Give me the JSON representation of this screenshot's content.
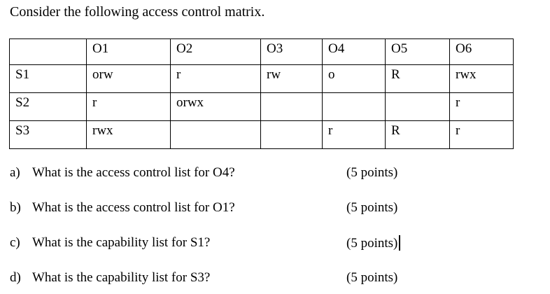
{
  "title": "Consider the following access control matrix.",
  "matrix": {
    "columns": [
      "",
      "O1",
      "O2",
      "O3",
      "O4",
      "O5",
      "O6"
    ],
    "rows": [
      {
        "label": "S1",
        "cells": [
          "orw",
          "r",
          "rw",
          "o",
          "R",
          "rwx"
        ]
      },
      {
        "label": "S2",
        "cells": [
          "r",
          "orwx",
          "",
          "",
          "",
          "r"
        ]
      },
      {
        "label": "S3",
        "cells": [
          "rwx",
          "",
          "",
          "r",
          "R",
          "r"
        ]
      }
    ]
  },
  "questions": [
    {
      "label": "a)",
      "text": "What is the access control list for O4?",
      "points": "(5 points)",
      "cursor": false
    },
    {
      "label": "b)",
      "text": "What is the access control list for O1?",
      "points": "(5 points)",
      "cursor": false
    },
    {
      "label": "c)",
      "text": "What is the capability list for S1?",
      "points": "(5 points)",
      "cursor": true
    },
    {
      "label": "d)",
      "text": "What is the capability list for S3?",
      "points": "(5 points)",
      "cursor": false
    }
  ],
  "colors": {
    "text": "#000000",
    "background": "#ffffff",
    "table_border": "#000000"
  }
}
